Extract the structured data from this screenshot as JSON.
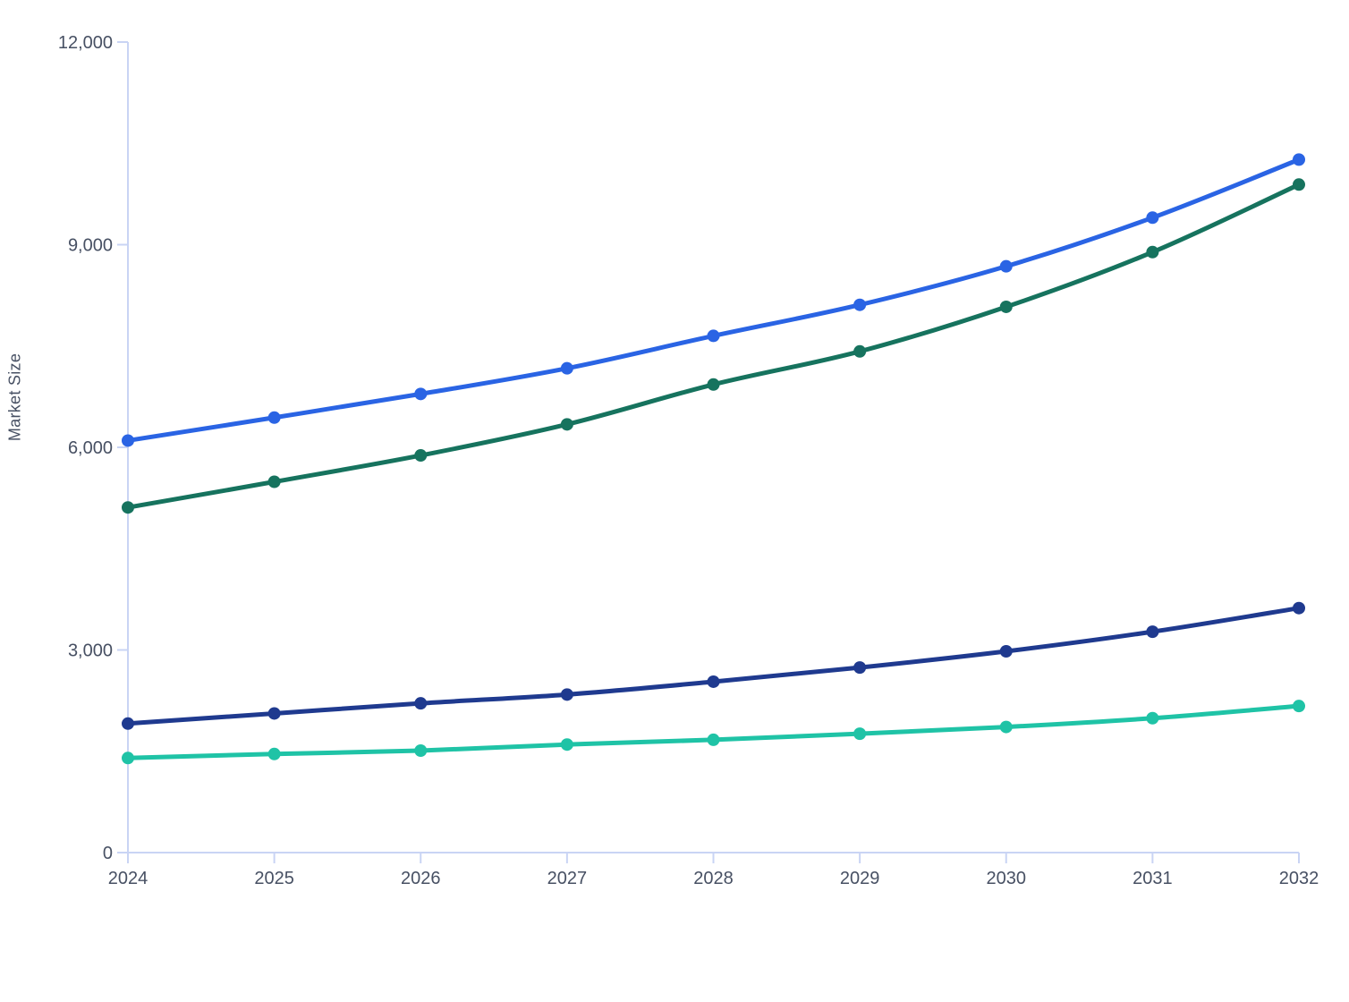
{
  "chart_data": {
    "type": "line",
    "title": "",
    "xlabel": "",
    "ylabel": "Market Size",
    "x": [
      2024,
      2025,
      2026,
      2027,
      2028,
      2029,
      2030,
      2031,
      2032
    ],
    "x_tick_labels": [
      "2024",
      "2025",
      "2026",
      "2027",
      "2028",
      "2029",
      "2030",
      "2031",
      "2032"
    ],
    "y_ticks": [
      0,
      3000,
      6000,
      9000,
      12000
    ],
    "y_tick_labels": [
      "0",
      "3,000",
      "6,000",
      "9,000",
      "12,000"
    ],
    "ylim": [
      0,
      12000
    ],
    "grid": false,
    "legend_position": "none",
    "series": [
      {
        "id": "blue",
        "color": "#2a64e4",
        "values": [
          6100,
          6440,
          6790,
          7170,
          7650,
          8110,
          8680,
          9400,
          10260
        ]
      },
      {
        "id": "green",
        "color": "#16735e",
        "values": [
          5110,
          5490,
          5880,
          6340,
          6930,
          7420,
          8080,
          8890,
          9890
        ]
      },
      {
        "id": "navy",
        "color": "#1f3a8f",
        "values": [
          1910,
          2060,
          2210,
          2340,
          2530,
          2740,
          2980,
          3270,
          3620
        ]
      },
      {
        "id": "teal",
        "color": "#1fc3a6",
        "values": [
          1400,
          1460,
          1510,
          1600,
          1670,
          1760,
          1860,
          1990,
          2170
        ]
      }
    ]
  },
  "style": {
    "axis_color": "#c9d4f4",
    "text_color": "#475063",
    "background": "#ffffff"
  }
}
